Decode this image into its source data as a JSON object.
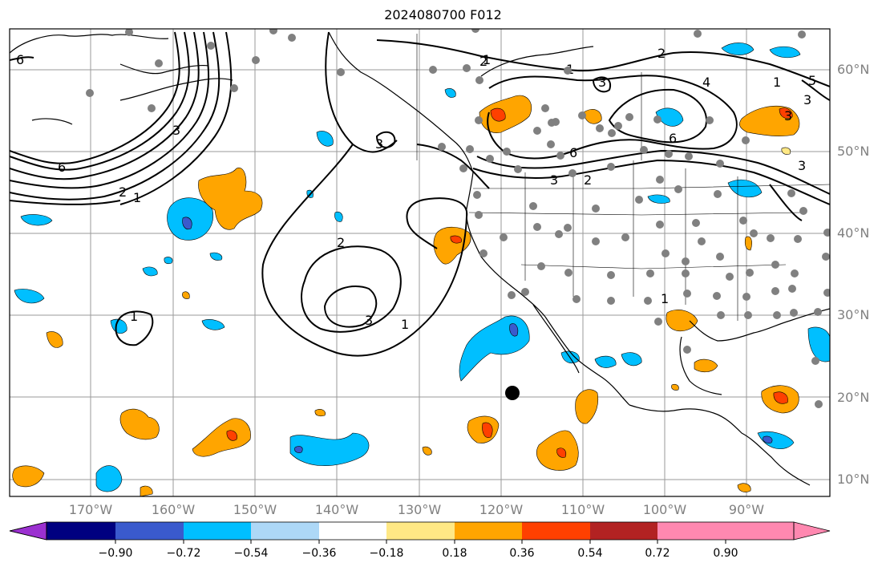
{
  "title": "2024080700 F012",
  "lat_labels": [
    "60°N",
    "50°N",
    "40°N",
    "30°N",
    "20°N",
    "10°N"
  ],
  "lon_labels": [
    "170°W",
    "160°W",
    "150°W",
    "140°W",
    "130°W",
    "120°W",
    "110°W",
    "100°W",
    "90°W"
  ],
  "colorbar": {
    "ticks": [
      "−0.90",
      "−0.72",
      "−0.54",
      "−0.36",
      "−0.18",
      "0.18",
      "0.36",
      "0.54",
      "0.72",
      "0.90"
    ],
    "colors": [
      "#9b30d0",
      "#000080",
      "#3a5acd",
      "#00bfff",
      "#add8f7",
      "#ffffff",
      "#ffe885",
      "#ffa500",
      "#ff4000",
      "#b22222",
      "#ff88b0"
    ]
  },
  "contour_labels": [
    "6",
    "2",
    "1",
    "6",
    "1",
    "3",
    "1",
    "2",
    "2",
    "3",
    "1",
    "1",
    "3",
    "6",
    "3",
    "2",
    "3",
    "1",
    "2",
    "4",
    "3",
    "6",
    "3",
    "5",
    "3",
    "1"
  ],
  "marker_colors": {
    "station": "#808080",
    "center": "#000000"
  }
}
